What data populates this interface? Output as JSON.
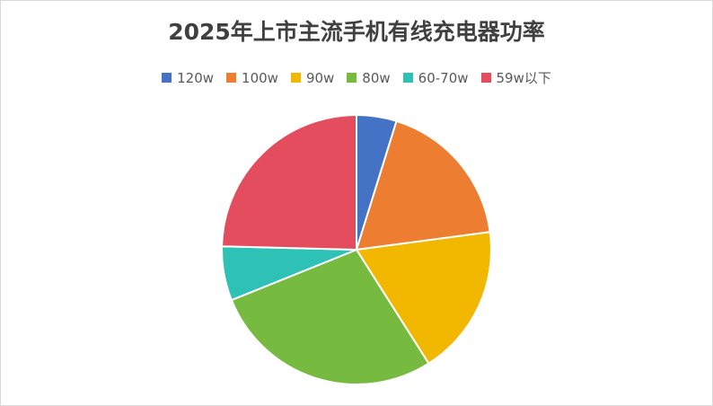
{
  "chart_data": {
    "type": "pie",
    "title": "2025年上市主流手机有线充电器功率",
    "legend_position": "top",
    "start_angle": "12 o'clock, clockwise",
    "series": [
      {
        "name": "120w",
        "value": 4.8,
        "color": "#4472C4"
      },
      {
        "name": "100w",
        "value": 18.1,
        "color": "#ED7D31"
      },
      {
        "name": "90w",
        "value": 18.1,
        "color": "#F2B800"
      },
      {
        "name": "80w",
        "value": 27.9,
        "color": "#76BB40"
      },
      {
        "name": "60-70w",
        "value": 6.5,
        "color": "#2EC1B6"
      },
      {
        "name": "59w以下",
        "value": 24.6,
        "color": "#E34D5E"
      }
    ]
  }
}
